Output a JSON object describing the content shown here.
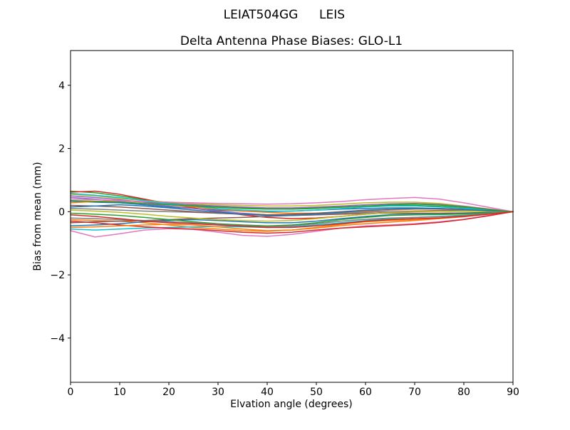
{
  "suptitle": {
    "left": "LEIAT504GG",
    "right": "LEIS"
  },
  "chart_data": {
    "type": "line",
    "title": "Delta Antenna Phase Biases: GLO-L1",
    "xlabel": "Elvation angle (degrees)",
    "ylabel": "Bias from mean (mm)",
    "xlim": [
      0,
      90
    ],
    "ylim": [
      -5.4,
      5.1
    ],
    "xticks": [
      0,
      10,
      20,
      30,
      40,
      50,
      60,
      70,
      80,
      90
    ],
    "yticks": [
      -4,
      -2,
      0,
      2,
      4
    ],
    "grid": false,
    "legend": "none",
    "background": "#ffffff",
    "axis_color": "#000000",
    "line_width": 1.5,
    "color_cycle": [
      "#1f77b4",
      "#ff7f0e",
      "#2ca02c",
      "#d62728",
      "#9467bd",
      "#8c564b",
      "#e377c2",
      "#7f7f7f",
      "#bcbd22",
      "#17becf"
    ],
    "x": [
      0,
      5,
      10,
      15,
      20,
      25,
      30,
      35,
      40,
      45,
      50,
      55,
      60,
      65,
      70,
      75,
      80,
      85,
      90
    ],
    "series": [
      {
        "values": [
          0.33,
          0.3,
          0.28,
          0.22,
          0.15,
          0.1,
          0.05,
          0.02,
          0.0,
          0.02,
          0.05,
          0.08,
          0.1,
          0.12,
          0.12,
          0.1,
          0.07,
          0.03,
          0.0
        ]
      },
      {
        "values": [
          -0.25,
          -0.28,
          -0.3,
          -0.35,
          -0.42,
          -0.5,
          -0.55,
          -0.6,
          -0.62,
          -0.58,
          -0.5,
          -0.4,
          -0.32,
          -0.28,
          -0.25,
          -0.2,
          -0.14,
          -0.07,
          0.0
        ]
      },
      {
        "values": [
          0.65,
          0.6,
          0.5,
          0.38,
          0.28,
          0.2,
          0.15,
          0.12,
          0.1,
          0.1,
          0.12,
          0.15,
          0.18,
          0.2,
          0.2,
          0.17,
          0.12,
          0.06,
          0.0
        ]
      },
      {
        "values": [
          0.62,
          0.65,
          0.55,
          0.4,
          0.25,
          0.12,
          0.0,
          -0.1,
          -0.18,
          -0.22,
          -0.2,
          -0.15,
          -0.08,
          -0.02,
          0.02,
          0.04,
          0.04,
          0.02,
          0.0
        ]
      },
      {
        "values": [
          0.45,
          0.4,
          0.32,
          0.25,
          0.18,
          0.1,
          0.02,
          -0.05,
          -0.1,
          -0.12,
          -0.1,
          -0.05,
          0.0,
          0.05,
          0.08,
          0.08,
          0.06,
          0.03,
          0.0
        ]
      },
      {
        "values": [
          -0.35,
          -0.32,
          -0.3,
          -0.28,
          -0.25,
          -0.22,
          -0.2,
          -0.18,
          -0.15,
          -0.12,
          -0.1,
          -0.08,
          -0.06,
          -0.05,
          -0.05,
          -0.05,
          -0.04,
          -0.02,
          0.0
        ]
      },
      {
        "values": [
          -0.6,
          -0.8,
          -0.7,
          -0.58,
          -0.54,
          -0.56,
          -0.65,
          -0.75,
          -0.78,
          -0.72,
          -0.62,
          -0.52,
          -0.45,
          -0.42,
          -0.38,
          -0.32,
          -0.24,
          -0.12,
          0.0
        ]
      },
      {
        "values": [
          0.1,
          0.08,
          0.05,
          0.02,
          0.0,
          -0.02,
          -0.05,
          -0.08,
          -0.1,
          -0.1,
          -0.08,
          -0.05,
          -0.02,
          0.0,
          0.02,
          0.03,
          0.03,
          0.02,
          0.0
        ]
      },
      {
        "values": [
          0.55,
          0.5,
          0.42,
          0.35,
          0.3,
          0.25,
          0.22,
          0.2,
          0.18,
          0.18,
          0.2,
          0.24,
          0.28,
          0.3,
          0.3,
          0.26,
          0.18,
          0.09,
          0.0
        ]
      },
      {
        "values": [
          -0.55,
          -0.58,
          -0.55,
          -0.52,
          -0.5,
          -0.48,
          -0.47,
          -0.48,
          -0.5,
          -0.48,
          -0.42,
          -0.35,
          -0.28,
          -0.22,
          -0.18,
          -0.15,
          -0.11,
          -0.06,
          0.0
        ]
      },
      {
        "values": [
          -0.45,
          -0.42,
          -0.38,
          -0.32,
          -0.28,
          -0.25,
          -0.28,
          -0.32,
          -0.35,
          -0.35,
          -0.3,
          -0.22,
          -0.15,
          -0.1,
          -0.08,
          -0.08,
          -0.06,
          -0.03,
          0.0
        ]
      },
      {
        "values": [
          0.28,
          0.32,
          0.35,
          0.3,
          0.22,
          0.15,
          0.08,
          0.02,
          -0.02,
          -0.05,
          -0.05,
          -0.02,
          0.02,
          0.06,
          0.08,
          0.08,
          0.06,
          0.03,
          0.0
        ]
      },
      {
        "values": [
          -0.05,
          -0.08,
          -0.12,
          -0.18,
          -0.25,
          -0.32,
          -0.38,
          -0.42,
          -0.45,
          -0.42,
          -0.35,
          -0.25,
          -0.18,
          -0.12,
          -0.1,
          -0.09,
          -0.07,
          -0.04,
          0.0
        ]
      },
      {
        "values": [
          -0.3,
          -0.35,
          -0.42,
          -0.48,
          -0.52,
          -0.55,
          -0.6,
          -0.65,
          -0.68,
          -0.65,
          -0.58,
          -0.52,
          -0.48,
          -0.44,
          -0.4,
          -0.34,
          -0.25,
          -0.13,
          0.0
        ]
      },
      {
        "values": [
          0.5,
          0.45,
          0.38,
          0.3,
          0.25,
          0.22,
          0.18,
          0.15,
          0.12,
          0.12,
          0.15,
          0.18,
          0.22,
          0.25,
          0.26,
          0.23,
          0.17,
          0.08,
          0.0
        ]
      },
      {
        "values": [
          0.2,
          0.18,
          0.15,
          0.1,
          0.05,
          0.0,
          -0.05,
          -0.08,
          -0.1,
          -0.08,
          -0.05,
          0.0,
          0.05,
          0.08,
          0.1,
          0.1,
          0.08,
          0.04,
          0.0
        ]
      },
      {
        "values": [
          0.4,
          0.38,
          0.35,
          0.32,
          0.3,
          0.28,
          0.26,
          0.25,
          0.24,
          0.25,
          0.28,
          0.32,
          0.38,
          0.42,
          0.45,
          0.4,
          0.28,
          0.14,
          0.0
        ]
      },
      {
        "values": [
          -0.2,
          -0.22,
          -0.25,
          -0.28,
          -0.32,
          -0.35,
          -0.4,
          -0.45,
          -0.48,
          -0.45,
          -0.38,
          -0.3,
          -0.24,
          -0.2,
          -0.18,
          -0.16,
          -0.12,
          -0.06,
          0.0
        ]
      },
      {
        "values": [
          0.05,
          0.02,
          -0.02,
          -0.08,
          -0.15,
          -0.2,
          -0.25,
          -0.28,
          -0.3,
          -0.28,
          -0.22,
          -0.15,
          -0.08,
          -0.03,
          0.0,
          0.01,
          0.01,
          0.01,
          0.0
        ]
      },
      {
        "values": [
          0.58,
          0.52,
          0.45,
          0.35,
          0.25,
          0.18,
          0.1,
          0.05,
          0.02,
          0.02,
          0.05,
          0.1,
          0.15,
          0.18,
          0.18,
          0.15,
          0.11,
          0.05,
          0.0
        ]
      },
      {
        "values": [
          0.15,
          0.18,
          0.22,
          0.18,
          0.12,
          0.05,
          -0.02,
          -0.08,
          -0.12,
          -0.12,
          -0.08,
          -0.02,
          0.04,
          0.08,
          0.1,
          0.09,
          0.07,
          0.03,
          0.0
        ]
      },
      {
        "values": [
          -0.5,
          -0.48,
          -0.45,
          -0.42,
          -0.4,
          -0.42,
          -0.48,
          -0.55,
          -0.6,
          -0.58,
          -0.52,
          -0.44,
          -0.38,
          -0.33,
          -0.28,
          -0.22,
          -0.16,
          -0.08,
          0.0
        ]
      },
      {
        "values": [
          0.35,
          0.33,
          0.3,
          0.26,
          0.22,
          0.18,
          0.14,
          0.1,
          0.08,
          0.08,
          0.1,
          0.14,
          0.18,
          0.22,
          0.24,
          0.21,
          0.15,
          0.07,
          0.0
        ]
      },
      {
        "values": [
          -0.1,
          -0.15,
          -0.22,
          -0.3,
          -0.35,
          -0.38,
          -0.42,
          -0.46,
          -0.5,
          -0.5,
          -0.45,
          -0.38,
          -0.3,
          -0.25,
          -0.22,
          -0.2,
          -0.15,
          -0.08,
          0.0
        ]
      }
    ]
  }
}
